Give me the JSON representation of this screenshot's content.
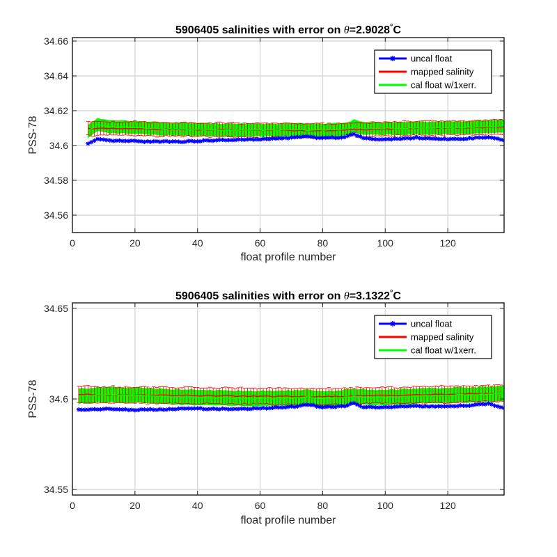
{
  "colors": {
    "uncal": "#0000ff",
    "mapped": "#ff0000",
    "cal": "#00ff00",
    "errorbar": "#ff0000",
    "grid": "#d9d9d9",
    "axis": "#262626"
  },
  "chart_data": [
    {
      "type": "line",
      "title_prefix": "5906405 salinities with error on ",
      "theta_symbol": "θ",
      "title_value": "=2.9028",
      "degree_symbol": "°",
      "title_unit": "C",
      "xlabel": "float profile number",
      "ylabel": "PSS-78",
      "xlim": [
        0,
        138
      ],
      "ylim": [
        34.55,
        34.662
      ],
      "xticks": [
        0,
        20,
        40,
        60,
        80,
        100,
        120
      ],
      "yticks": [
        34.56,
        34.58,
        34.6,
        34.62,
        34.64,
        34.66
      ],
      "ytick_labels": [
        "34.56",
        "34.58",
        "34.6",
        "34.62",
        "34.64",
        "34.66"
      ],
      "grid": true,
      "legend_position": "top-right",
      "x_start": 5,
      "x_end": 138,
      "series": [
        {
          "name": "uncal float",
          "key": "uncal",
          "knots": [
            [
              5,
              34.601
            ],
            [
              8,
              34.6035
            ],
            [
              12,
              34.6028
            ],
            [
              20,
              34.6025
            ],
            [
              25,
              34.6022
            ],
            [
              30,
              34.6024
            ],
            [
              35,
              34.6022
            ],
            [
              40,
              34.6026
            ],
            [
              50,
              34.6032
            ],
            [
              60,
              34.6035
            ],
            [
              70,
              34.6045
            ],
            [
              75,
              34.6052
            ],
            [
              80,
              34.6042
            ],
            [
              87,
              34.6048
            ],
            [
              90,
              34.6068
            ],
            [
              93,
              34.6042
            ],
            [
              100,
              34.6035
            ],
            [
              110,
              34.6045
            ],
            [
              120,
              34.6035
            ],
            [
              128,
              34.6042
            ],
            [
              133,
              34.6048
            ],
            [
              138,
              34.603
            ]
          ]
        },
        {
          "name": "mapped salinity",
          "key": "mapped",
          "knots": [
            [
              5,
              34.6098
            ],
            [
              20,
              34.6096
            ],
            [
              40,
              34.609
            ],
            [
              60,
              34.6088
            ],
            [
              80,
              34.6085
            ],
            [
              100,
              34.6095
            ],
            [
              120,
              34.61
            ],
            [
              138,
              34.6106
            ]
          ]
        },
        {
          "name": "cal float w/1xerr.",
          "key": "cal",
          "knots": [
            [
              5,
              34.6085
            ],
            [
              8,
              34.6118
            ],
            [
              12,
              34.6108
            ],
            [
              20,
              34.6105
            ],
            [
              30,
              34.6095
            ],
            [
              40,
              34.6092
            ],
            [
              50,
              34.609
            ],
            [
              60,
              34.6088
            ],
            [
              70,
              34.609
            ],
            [
              80,
              34.6088
            ],
            [
              88,
              34.6095
            ],
            [
              90,
              34.6112
            ],
            [
              93,
              34.6098
            ],
            [
              100,
              34.6098
            ],
            [
              110,
              34.61
            ],
            [
              120,
              34.6102
            ],
            [
              130,
              34.6105
            ],
            [
              138,
              34.611
            ]
          ]
        }
      ],
      "error_halfwidth": 0.004,
      "cal_band_halfwidth": 0.0035
    },
    {
      "type": "line",
      "title_prefix": "5906405 salinities with error on ",
      "theta_symbol": "θ",
      "title_value": "=3.1322",
      "degree_symbol": "°",
      "title_unit": "C",
      "xlabel": "float profile number",
      "ylabel": "PSS-78",
      "xlim": [
        0,
        138
      ],
      "ylim": [
        34.547,
        34.653
      ],
      "xticks": [
        0,
        20,
        40,
        60,
        80,
        100,
        120
      ],
      "yticks": [
        34.55,
        34.6,
        34.65
      ],
      "ytick_labels": [
        "34.55",
        "34.6",
        "34.65"
      ],
      "grid": true,
      "legend_position": "top-right",
      "x_start": 2,
      "x_end": 138,
      "series": [
        {
          "name": "uncal float",
          "key": "uncal",
          "knots": [
            [
              2,
              34.594
            ],
            [
              10,
              34.5945
            ],
            [
              20,
              34.594
            ],
            [
              30,
              34.5942
            ],
            [
              38,
              34.5948
            ],
            [
              45,
              34.5945
            ],
            [
              55,
              34.5945
            ],
            [
              65,
              34.5952
            ],
            [
              72,
              34.596
            ],
            [
              75,
              34.597
            ],
            [
              80,
              34.5955
            ],
            [
              87,
              34.596
            ],
            [
              90,
              34.5978
            ],
            [
              93,
              34.5955
            ],
            [
              100,
              34.5955
            ],
            [
              110,
              34.596
            ],
            [
              120,
              34.5958
            ],
            [
              128,
              34.5965
            ],
            [
              133,
              34.5975
            ],
            [
              138,
              34.5948
            ]
          ]
        },
        {
          "name": "mapped salinity",
          "key": "mapped",
          "knots": [
            [
              2,
              34.6025
            ],
            [
              20,
              34.6022
            ],
            [
              40,
              34.6018
            ],
            [
              60,
              34.6015
            ],
            [
              80,
              34.6012
            ],
            [
              100,
              34.602
            ],
            [
              120,
              34.6025
            ],
            [
              138,
              34.6032
            ]
          ]
        },
        {
          "name": "cal float w/1xerr.",
          "key": "cal",
          "knots": [
            [
              2,
              34.6015
            ],
            [
              10,
              34.6025
            ],
            [
              20,
              34.602
            ],
            [
              30,
              34.6012
            ],
            [
              40,
              34.6008
            ],
            [
              50,
              34.6005
            ],
            [
              60,
              34.6002
            ],
            [
              70,
              34.6005
            ],
            [
              75,
              34.601
            ],
            [
              80,
              34.6002
            ],
            [
              90,
              34.6012
            ],
            [
              100,
              34.6008
            ],
            [
              110,
              34.6015
            ],
            [
              120,
              34.602
            ],
            [
              130,
              34.6025
            ],
            [
              138,
              34.603
            ]
          ]
        }
      ],
      "error_halfwidth": 0.0045,
      "cal_band_halfwidth": 0.004
    }
  ]
}
